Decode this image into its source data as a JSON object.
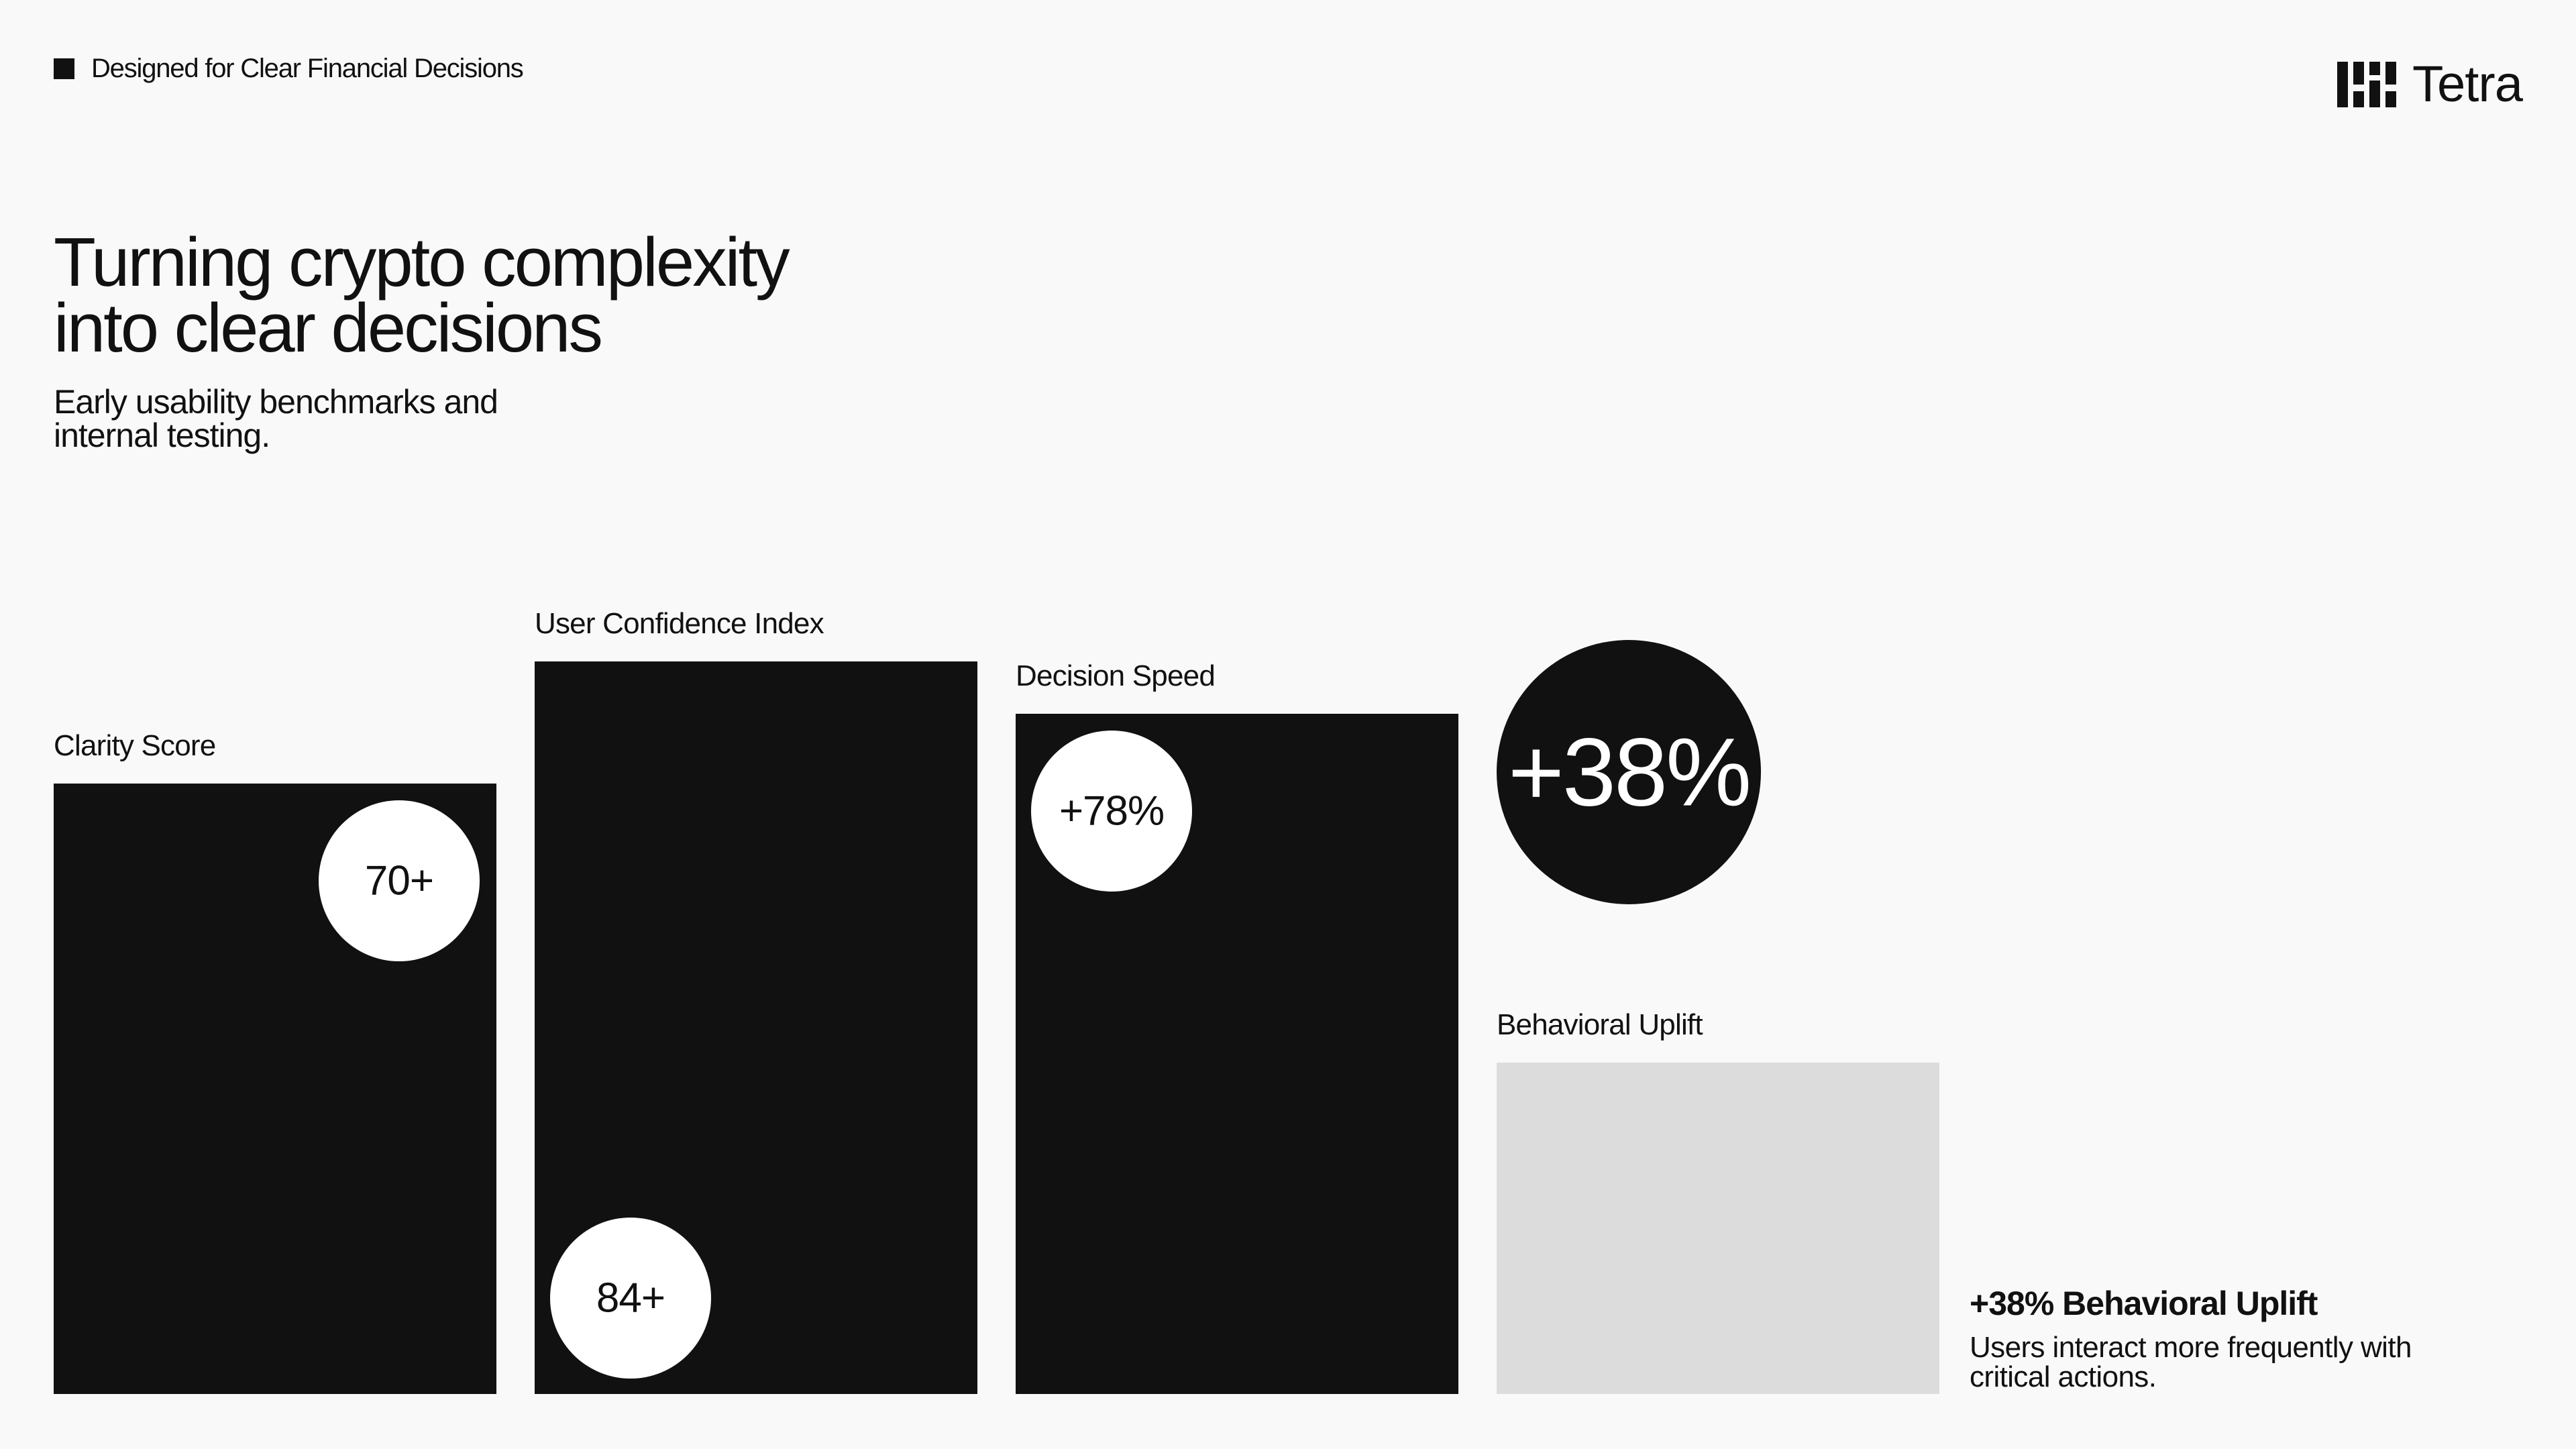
{
  "header": {
    "tagline": "Designed for Clear Financial Decisions",
    "brand": "Tetra"
  },
  "headline": {
    "line1": "Turning crypto complexity",
    "line2": "into clear decisions"
  },
  "subheading": {
    "line1": "Early usability benchmarks and",
    "line2": "internal testing."
  },
  "chart_data": {
    "type": "bar",
    "categories": [
      "Clarity Score",
      "User Confidence Index",
      "Decision Speed",
      "Behavioral Uplift"
    ],
    "values": [
      70,
      84,
      78,
      38
    ],
    "value_labels": [
      "70+",
      "84+",
      "+78%",
      "+38%"
    ],
    "value_label_positions": [
      "top-right",
      "bottom-left",
      "top-left",
      "above-bar"
    ],
    "highlight": "Behavioral Uplift",
    "colors": {
      "bar": "#111111",
      "highlight_bar": "#dcdcdc",
      "badge": "#ffffff",
      "highlight_badge": "#111111"
    },
    "title": "",
    "xlabel": "",
    "ylabel": "",
    "grid": false,
    "legend": "none"
  },
  "uplift_note": {
    "heading": "+38% Behavioral Uplift",
    "desc_line1": "Users interact more frequently with",
    "desc_line2": "critical actions."
  }
}
